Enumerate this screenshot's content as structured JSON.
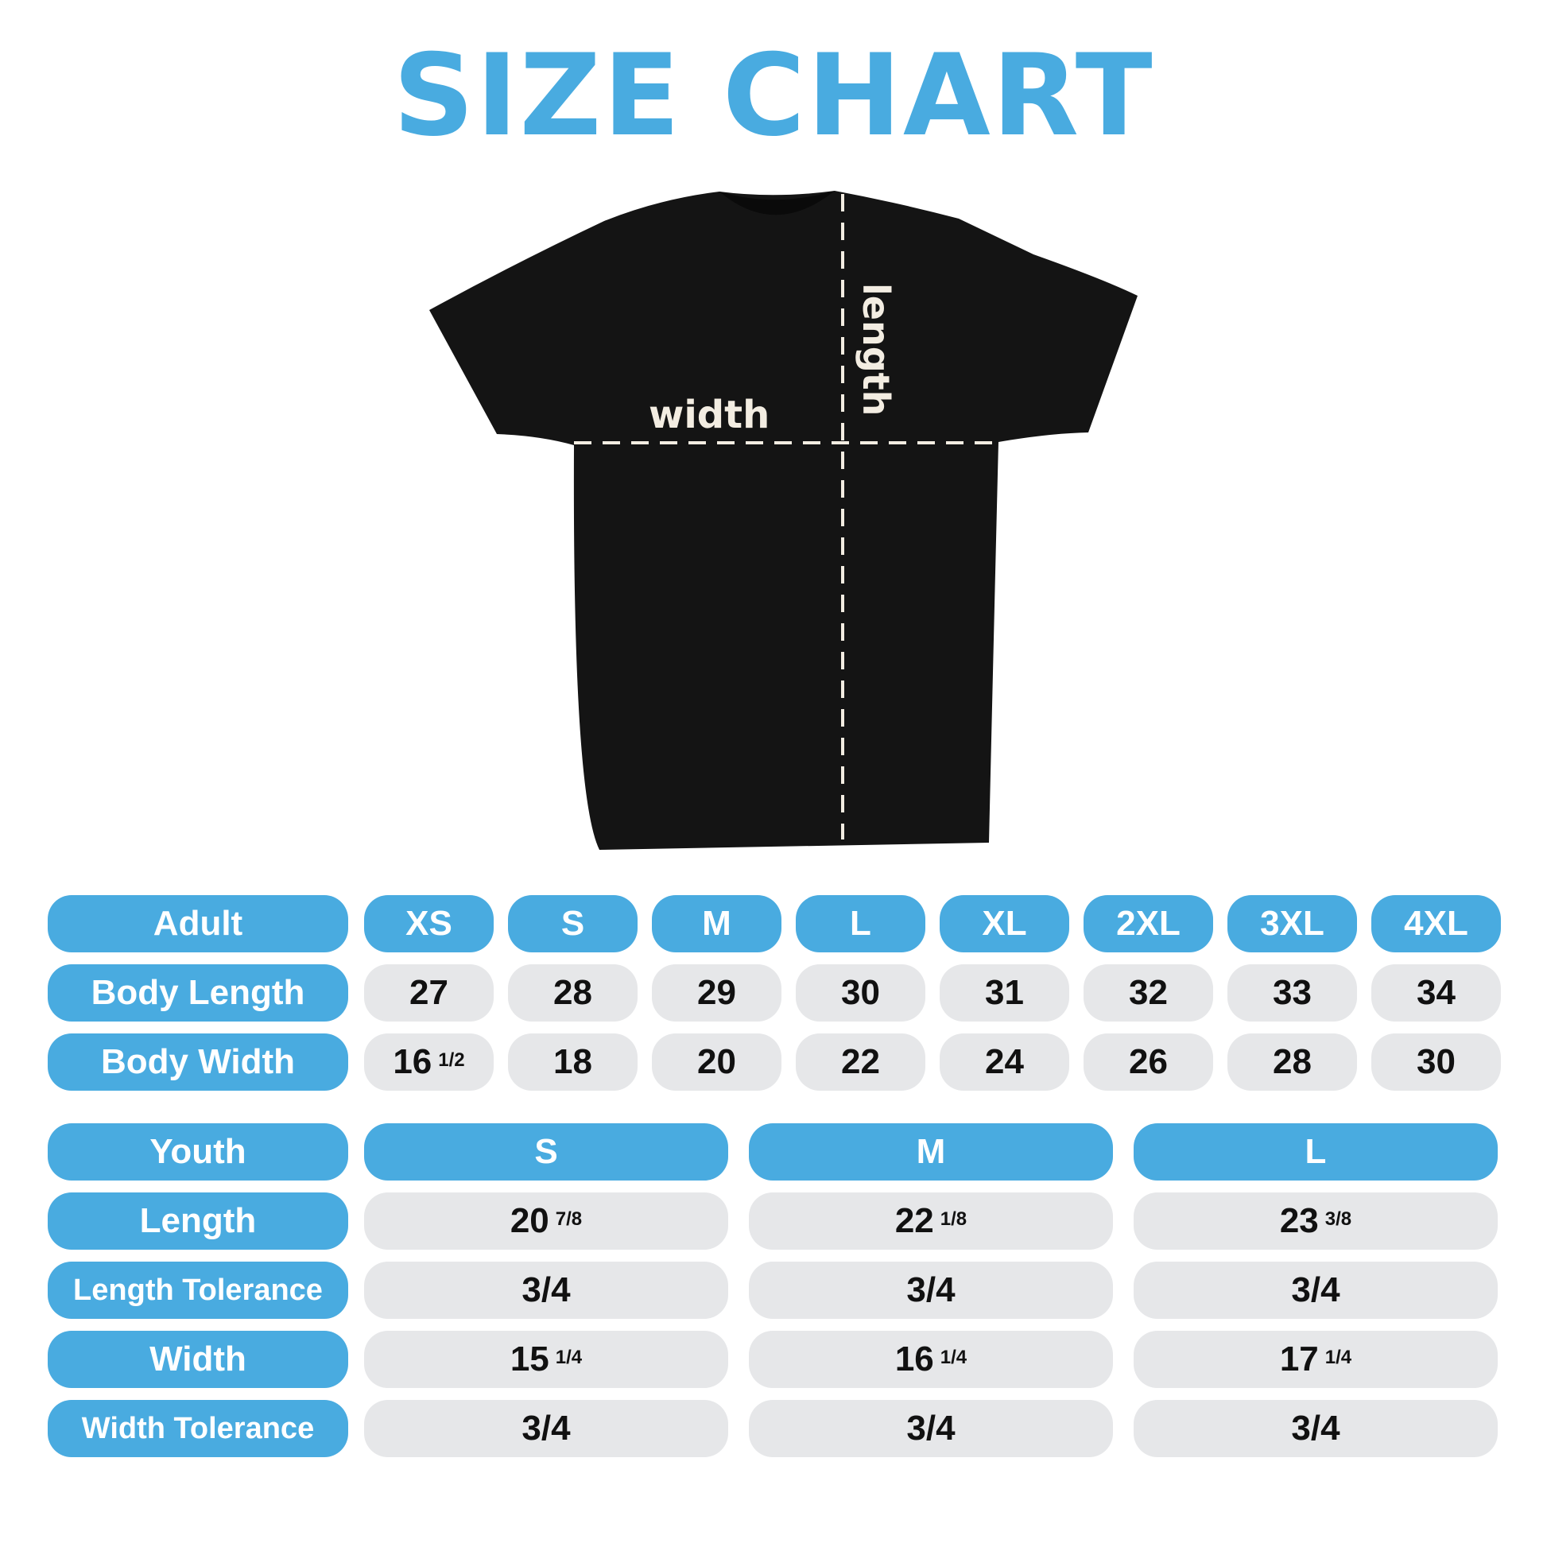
{
  "title": "SIZE CHART",
  "colors": {
    "accent": "#49abe0",
    "cell": "#e6e7e9",
    "shirt": "#141414"
  },
  "diagram": {
    "width_label": "width",
    "length_label": "length"
  },
  "adult": {
    "header_label": "Adult",
    "sizes": [
      "XS",
      "S",
      "M",
      "L",
      "XL",
      "2XL",
      "3XL",
      "4XL"
    ],
    "rows": [
      {
        "label": "Body Length",
        "values": [
          {
            "whole": "27"
          },
          {
            "whole": "28"
          },
          {
            "whole": "29"
          },
          {
            "whole": "30"
          },
          {
            "whole": "31"
          },
          {
            "whole": "32"
          },
          {
            "whole": "33"
          },
          {
            "whole": "34"
          }
        ]
      },
      {
        "label": "Body Width",
        "values": [
          {
            "whole": "16",
            "frac": "1/2"
          },
          {
            "whole": "18"
          },
          {
            "whole": "20"
          },
          {
            "whole": "22"
          },
          {
            "whole": "24"
          },
          {
            "whole": "26"
          },
          {
            "whole": "28"
          },
          {
            "whole": "30"
          }
        ]
      }
    ]
  },
  "youth": {
    "header_label": "Youth",
    "sizes": [
      "S",
      "M",
      "L"
    ],
    "rows": [
      {
        "label": "Length",
        "values": [
          {
            "whole": "20",
            "frac": "7/8"
          },
          {
            "whole": "22",
            "frac": "1/8"
          },
          {
            "whole": "23",
            "frac": "3/8"
          }
        ]
      },
      {
        "label": "Length Tolerance",
        "values": [
          {
            "whole": "3/4"
          },
          {
            "whole": "3/4"
          },
          {
            "whole": "3/4"
          }
        ]
      },
      {
        "label": "Width",
        "values": [
          {
            "whole": "15",
            "frac": "1/4"
          },
          {
            "whole": "16",
            "frac": "1/4"
          },
          {
            "whole": "17",
            "frac": "1/4"
          }
        ]
      },
      {
        "label": "Width Tolerance",
        "values": [
          {
            "whole": "3/4"
          },
          {
            "whole": "3/4"
          },
          {
            "whole": "3/4"
          }
        ]
      }
    ]
  }
}
